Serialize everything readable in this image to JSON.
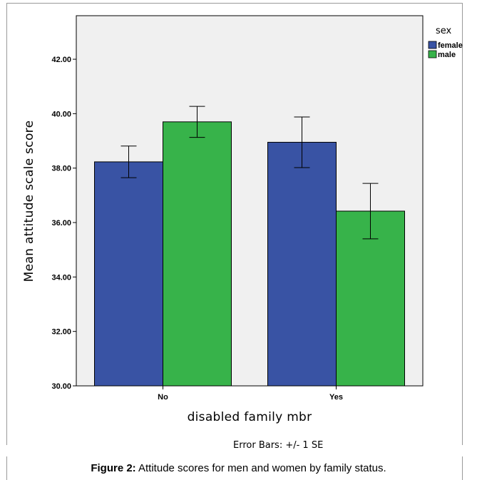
{
  "chart_data": {
    "type": "bar",
    "xlabel": "disabled family mbr",
    "ylabel": "Mean attitude scale score",
    "categories": [
      "No",
      "Yes"
    ],
    "ylim": [
      30,
      43.6
    ],
    "yticks": [
      "30.00",
      "32.00",
      "34.00",
      "36.00",
      "38.00",
      "40.00",
      "42.00"
    ],
    "legend_title": "sex",
    "legend_position": "top-right",
    "grid": false,
    "series": [
      {
        "name": "female",
        "color": "#3953a4",
        "values": [
          38.23,
          38.95
        ],
        "error": [
          0.58,
          0.93
        ]
      },
      {
        "name": "male",
        "color": "#37b34a",
        "values": [
          39.7,
          36.42
        ],
        "error": [
          0.57,
          1.02
        ]
      }
    ],
    "note": "Error Bars: +/- 1 SE"
  },
  "caption": {
    "label": "Figure 2:",
    "text": " Attitude scores for men and women by family status."
  },
  "colors": {
    "plot_background": "#f0f0f0",
    "error_bar": "#000000"
  }
}
